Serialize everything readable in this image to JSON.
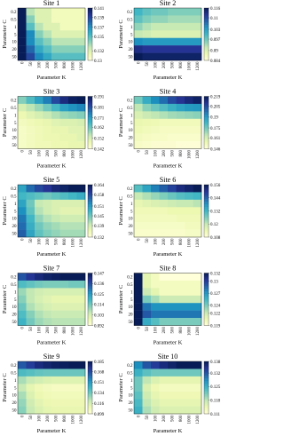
{
  "chart_data": [
    {
      "type": "heatmap",
      "title": "Site 1",
      "xlabel": "Parameter K",
      "ylabel": "Parameter C",
      "colormap": "YlGnBu",
      "x": [
        "0",
        "50",
        "100",
        "200",
        "500",
        "800",
        "1000",
        "1200"
      ],
      "y": [
        "0.2",
        "0.5",
        "1",
        "5",
        "10",
        "20",
        "50"
      ],
      "zlim": [
        0.13,
        0.141
      ],
      "zticks": [
        0.141,
        0.139,
        0.137,
        0.135,
        0.132,
        0.13
      ],
      "values": [
        [
          0.141,
          0.133,
          0.132,
          0.132,
          0.131,
          0.131,
          0.131,
          0.131
        ],
        [
          0.141,
          0.134,
          0.132,
          0.132,
          0.131,
          0.131,
          0.131,
          0.131
        ],
        [
          0.141,
          0.135,
          0.133,
          0.132,
          0.132,
          0.131,
          0.131,
          0.131
        ],
        [
          0.141,
          0.137,
          0.134,
          0.133,
          0.132,
          0.132,
          0.132,
          0.132
        ],
        [
          0.141,
          0.137,
          0.135,
          0.134,
          0.133,
          0.133,
          0.133,
          0.133
        ],
        [
          0.141,
          0.138,
          0.136,
          0.135,
          0.134,
          0.134,
          0.134,
          0.134
        ],
        [
          0.141,
          0.139,
          0.137,
          0.136,
          0.135,
          0.135,
          0.135,
          0.135
        ]
      ]
    },
    {
      "type": "heatmap",
      "title": "Site 2",
      "xlabel": "Parameter K",
      "ylabel": "Parameter C",
      "colormap": "YlGnBu",
      "x": [
        "0",
        "50",
        "100",
        "200",
        "500",
        "800",
        "1000",
        "1200"
      ],
      "y": [
        "0.2",
        "0.5",
        "1",
        "5",
        "10",
        "20",
        "50"
      ],
      "zlim": [
        0.084,
        0.116
      ],
      "zticks": [
        0.116,
        0.11,
        0.103,
        0.097,
        0.09,
        0.084
      ],
      "values": [
        [
          0.1,
          0.098,
          0.097,
          0.097,
          0.096,
          0.096,
          0.096,
          0.096
        ],
        [
          0.098,
          0.096,
          0.095,
          0.095,
          0.094,
          0.094,
          0.094,
          0.094
        ],
        [
          0.095,
          0.093,
          0.092,
          0.092,
          0.092,
          0.092,
          0.092,
          0.092
        ],
        [
          0.092,
          0.091,
          0.09,
          0.09,
          0.09,
          0.09,
          0.09,
          0.09
        ],
        [
          0.104,
          0.103,
          0.103,
          0.103,
          0.103,
          0.103,
          0.103,
          0.103
        ],
        [
          0.113,
          0.112,
          0.112,
          0.112,
          0.112,
          0.112,
          0.112,
          0.112
        ],
        [
          0.116,
          0.115,
          0.115,
          0.115,
          0.115,
          0.115,
          0.115,
          0.115
        ]
      ]
    },
    {
      "type": "heatmap",
      "title": "Site 3",
      "xlabel": "Parameter K",
      "ylabel": "Parameter C",
      "colormap": "YlGnBu",
      "x": [
        "0",
        "50",
        "100",
        "200",
        "500",
        "800",
        "1000",
        "1200"
      ],
      "y": [
        "0.2",
        "0.5",
        "1",
        "5",
        "10",
        "20",
        "50"
      ],
      "zlim": [
        0.142,
        0.191
      ],
      "zticks": [
        0.191,
        0.181,
        0.171,
        0.162,
        0.152,
        0.142
      ],
      "values": [
        [
          0.16,
          0.165,
          0.17,
          0.175,
          0.182,
          0.187,
          0.19,
          0.191
        ],
        [
          0.152,
          0.155,
          0.158,
          0.162,
          0.166,
          0.17,
          0.172,
          0.174
        ],
        [
          0.148,
          0.15,
          0.152,
          0.154,
          0.156,
          0.158,
          0.159,
          0.16
        ],
        [
          0.146,
          0.147,
          0.148,
          0.149,
          0.15,
          0.151,
          0.151,
          0.152
        ],
        [
          0.145,
          0.146,
          0.147,
          0.148,
          0.149,
          0.149,
          0.15,
          0.15
        ],
        [
          0.145,
          0.146,
          0.147,
          0.148,
          0.148,
          0.149,
          0.149,
          0.15
        ],
        [
          0.145,
          0.146,
          0.147,
          0.147,
          0.148,
          0.148,
          0.149,
          0.149
        ]
      ]
    },
    {
      "type": "heatmap",
      "title": "Site 4",
      "xlabel": "Parameter K",
      "ylabel": "Parameter C",
      "colormap": "YlGnBu",
      "x": [
        "0",
        "50",
        "100",
        "200",
        "500",
        "800",
        "1000",
        "1200"
      ],
      "y": [
        "0.2",
        "0.5",
        "1",
        "5",
        "10",
        "20",
        "50"
      ],
      "zlim": [
        0.146,
        0.219
      ],
      "zticks": [
        0.219,
        0.205,
        0.19,
        0.175,
        0.161,
        0.146
      ],
      "values": [
        [
          0.175,
          0.185,
          0.192,
          0.198,
          0.205,
          0.21,
          0.214,
          0.217
        ],
        [
          0.165,
          0.172,
          0.176,
          0.18,
          0.184,
          0.187,
          0.189,
          0.19
        ],
        [
          0.16,
          0.163,
          0.165,
          0.167,
          0.169,
          0.17,
          0.171,
          0.172
        ],
        [
          0.156,
          0.155,
          0.154,
          0.153,
          0.153,
          0.153,
          0.153,
          0.153
        ],
        [
          0.154,
          0.153,
          0.152,
          0.151,
          0.151,
          0.151,
          0.151,
          0.151
        ],
        [
          0.152,
          0.151,
          0.15,
          0.15,
          0.149,
          0.149,
          0.149,
          0.149
        ],
        [
          0.15,
          0.149,
          0.148,
          0.148,
          0.148,
          0.147,
          0.147,
          0.147
        ]
      ]
    },
    {
      "type": "heatmap",
      "title": "Site 5",
      "xlabel": "Parameter K",
      "ylabel": "Parameter C",
      "colormap": "YlGnBu",
      "x": [
        "0",
        "50",
        "100",
        "200",
        "500",
        "800",
        "1000",
        "1200"
      ],
      "y": [
        "0.2",
        "0.5",
        "1",
        "5",
        "10",
        "20",
        "50"
      ],
      "zlim": [
        0.132,
        0.164
      ],
      "zticks": [
        0.164,
        0.158,
        0.151,
        0.145,
        0.139,
        0.132
      ],
      "values": [
        [
          0.15,
          0.155,
          0.158,
          0.16,
          0.162,
          0.163,
          0.164,
          0.164
        ],
        [
          0.148,
          0.147,
          0.146,
          0.145,
          0.146,
          0.147,
          0.148,
          0.149
        ],
        [
          0.15,
          0.145,
          0.14,
          0.139,
          0.138,
          0.138,
          0.138,
          0.138
        ],
        [
          0.152,
          0.146,
          0.141,
          0.139,
          0.138,
          0.137,
          0.137,
          0.137
        ],
        [
          0.154,
          0.148,
          0.143,
          0.141,
          0.14,
          0.139,
          0.139,
          0.139
        ],
        [
          0.155,
          0.149,
          0.145,
          0.143,
          0.142,
          0.141,
          0.141,
          0.141
        ],
        [
          0.156,
          0.15,
          0.146,
          0.144,
          0.143,
          0.142,
          0.142,
          0.142
        ]
      ]
    },
    {
      "type": "heatmap",
      "title": "Site 6",
      "xlabel": "Parameter K",
      "ylabel": "Parameter C",
      "colormap": "YlGnBu",
      "x": [
        "0",
        "50",
        "100",
        "200",
        "500",
        "800",
        "1000",
        "1200"
      ],
      "y": [
        "0.2",
        "0.5",
        "1",
        "5",
        "10",
        "20",
        "50"
      ],
      "zlim": [
        0.108,
        0.156
      ],
      "zticks": [
        0.156,
        0.144,
        0.132,
        0.12,
        0.108
      ],
      "values": [
        [
          0.13,
          0.135,
          0.14,
          0.144,
          0.148,
          0.152,
          0.154,
          0.156
        ],
        [
          0.12,
          0.122,
          0.124,
          0.126,
          0.128,
          0.13,
          0.131,
          0.132
        ],
        [
          0.115,
          0.116,
          0.117,
          0.118,
          0.119,
          0.12,
          0.12,
          0.121
        ],
        [
          0.113,
          0.113,
          0.113,
          0.113,
          0.114,
          0.114,
          0.114,
          0.114
        ],
        [
          0.112,
          0.112,
          0.112,
          0.112,
          0.112,
          0.113,
          0.113,
          0.113
        ],
        [
          0.111,
          0.111,
          0.111,
          0.111,
          0.111,
          0.111,
          0.112,
          0.112
        ],
        [
          0.11,
          0.11,
          0.11,
          0.11,
          0.11,
          0.11,
          0.111,
          0.111
        ]
      ]
    },
    {
      "type": "heatmap",
      "title": "Site 7",
      "xlabel": "Parameter K",
      "ylabel": "Parameter C",
      "colormap": "YlGnBu",
      "x": [
        "0",
        "50",
        "100",
        "200",
        "500",
        "800",
        "1000",
        "1200"
      ],
      "y": [
        "0.2",
        "0.5",
        "1",
        "5",
        "10",
        "20",
        "50"
      ],
      "zlim": [
        0.092,
        0.147
      ],
      "zticks": [
        0.147,
        0.136,
        0.125,
        0.114,
        0.103,
        0.092
      ],
      "values": [
        [
          0.135,
          0.14,
          0.143,
          0.145,
          0.146,
          0.147,
          0.147,
          0.147
        ],
        [
          0.118,
          0.116,
          0.114,
          0.113,
          0.113,
          0.113,
          0.114,
          0.114
        ],
        [
          0.11,
          0.106,
          0.104,
          0.103,
          0.103,
          0.103,
          0.103,
          0.103
        ],
        [
          0.112,
          0.106,
          0.103,
          0.101,
          0.1,
          0.1,
          0.1,
          0.1
        ],
        [
          0.115,
          0.108,
          0.105,
          0.103,
          0.102,
          0.102,
          0.102,
          0.102
        ],
        [
          0.118,
          0.112,
          0.108,
          0.106,
          0.105,
          0.105,
          0.105,
          0.105
        ],
        [
          0.12,
          0.114,
          0.11,
          0.108,
          0.107,
          0.107,
          0.107,
          0.107
        ]
      ]
    },
    {
      "type": "heatmap",
      "title": "Site 8",
      "xlabel": "Parameter K",
      "ylabel": "Parameter C",
      "colormap": "YlGnBu",
      "x": [
        "0",
        "50",
        "100",
        "200",
        "500",
        "800",
        "1000",
        "1200"
      ],
      "y": [
        "0.2",
        "0.5",
        "1",
        "5",
        "10",
        "20",
        "50"
      ],
      "zlim": [
        0.119,
        0.132
      ],
      "zticks": [
        0.132,
        0.13,
        0.127,
        0.124,
        0.122,
        0.119
      ],
      "values": [
        [
          0.132,
          0.121,
          0.12,
          0.119,
          0.119,
          0.119,
          0.119,
          0.119
        ],
        [
          0.132,
          0.121,
          0.12,
          0.12,
          0.12,
          0.12,
          0.12,
          0.12
        ],
        [
          0.132,
          0.122,
          0.121,
          0.12,
          0.12,
          0.12,
          0.12,
          0.12
        ],
        [
          0.132,
          0.124,
          0.123,
          0.122,
          0.122,
          0.122,
          0.122,
          0.122
        ],
        [
          0.132,
          0.128,
          0.127,
          0.127,
          0.127,
          0.127,
          0.127,
          0.127
        ],
        [
          0.132,
          0.129,
          0.128,
          0.128,
          0.128,
          0.128,
          0.128,
          0.128
        ],
        [
          0.132,
          0.126,
          0.125,
          0.124,
          0.124,
          0.124,
          0.124,
          0.124
        ]
      ]
    },
    {
      "type": "heatmap",
      "title": "Site 9",
      "xlabel": "Parameter K",
      "ylabel": "Parameter C",
      "colormap": "YlGnBu",
      "x": [
        "0",
        "50",
        "100",
        "200",
        "500",
        "800",
        "1000",
        "1200"
      ],
      "y": [
        "0.2",
        "0.5",
        "1",
        "5",
        "10",
        "20",
        "50"
      ],
      "zlim": [
        0.099,
        0.185
      ],
      "zticks": [
        0.185,
        0.168,
        0.151,
        0.134,
        0.116,
        0.099
      ],
      "values": [
        [
          0.165,
          0.172,
          0.178,
          0.181,
          0.183,
          0.184,
          0.185,
          0.185
        ],
        [
          0.14,
          0.138,
          0.136,
          0.135,
          0.135,
          0.135,
          0.135,
          0.135
        ],
        [
          0.125,
          0.12,
          0.117,
          0.115,
          0.114,
          0.114,
          0.114,
          0.114
        ],
        [
          0.12,
          0.112,
          0.108,
          0.106,
          0.105,
          0.105,
          0.105,
          0.105
        ],
        [
          0.125,
          0.115,
          0.11,
          0.108,
          0.107,
          0.107,
          0.107,
          0.107
        ],
        [
          0.128,
          0.118,
          0.113,
          0.11,
          0.109,
          0.109,
          0.109,
          0.109
        ],
        [
          0.13,
          0.12,
          0.115,
          0.112,
          0.111,
          0.111,
          0.111,
          0.111
        ]
      ]
    },
    {
      "type": "heatmap",
      "title": "Site 10",
      "xlabel": "Parameter K",
      "ylabel": "Parameter C",
      "colormap": "YlGnBu",
      "x": [
        "0",
        "50",
        "100",
        "200",
        "500",
        "800",
        "1000",
        "1200"
      ],
      "y": [
        "0.2",
        "0.5",
        "1",
        "5",
        "10",
        "20",
        "50"
      ],
      "zlim": [
        0.111,
        0.138
      ],
      "zticks": [
        0.138,
        0.132,
        0.125,
        0.118,
        0.111
      ],
      "values": [
        [
          0.128,
          0.132,
          0.134,
          0.136,
          0.137,
          0.138,
          0.138,
          0.138
        ],
        [
          0.125,
          0.123,
          0.122,
          0.122,
          0.122,
          0.122,
          0.122,
          0.122
        ],
        [
          0.122,
          0.118,
          0.116,
          0.115,
          0.115,
          0.115,
          0.115,
          0.115
        ],
        [
          0.122,
          0.116,
          0.114,
          0.113,
          0.113,
          0.113,
          0.113,
          0.113
        ],
        [
          0.123,
          0.117,
          0.115,
          0.114,
          0.114,
          0.114,
          0.114,
          0.114
        ],
        [
          0.124,
          0.118,
          0.116,
          0.115,
          0.115,
          0.115,
          0.115,
          0.115
        ],
        [
          0.125,
          0.119,
          0.117,
          0.116,
          0.116,
          0.116,
          0.116,
          0.116
        ]
      ]
    }
  ]
}
